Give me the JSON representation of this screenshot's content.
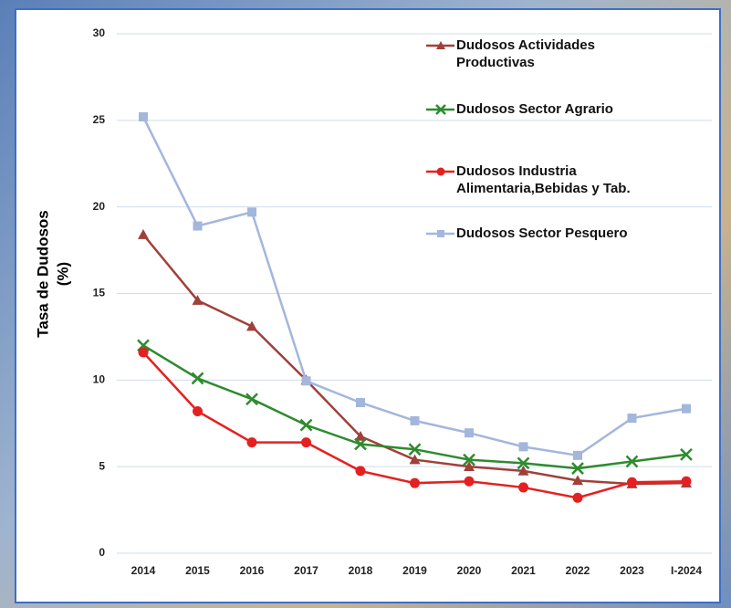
{
  "chart_data": {
    "type": "line",
    "y_label": [
      "Tasa de Dudosos",
      "(%)"
    ],
    "categories": [
      "2014",
      "2015",
      "2016",
      "2017",
      "2018",
      "2019",
      "2020",
      "2021",
      "2022",
      "2023",
      "I-2024"
    ],
    "series": [
      {
        "name": "Dudosos Actividades Productivas",
        "color": "#a0403a",
        "marker": "triangle",
        "values": [
          18.4,
          14.6,
          13.1,
          10.0,
          6.75,
          5.4,
          5.0,
          4.75,
          4.2,
          4.0,
          4.05
        ]
      },
      {
        "name": "Dudosos Sector Agrario",
        "color": "#2e8b2e",
        "marker": "x",
        "values": [
          12.0,
          10.1,
          8.9,
          7.4,
          6.3,
          6.0,
          5.4,
          5.2,
          4.9,
          5.3,
          5.7
        ]
      },
      {
        "name": "Dudosos Industria Alimentaria,Bebidas y Tab.",
        "color": "#e52020",
        "marker": "circle",
        "values": [
          11.6,
          8.2,
          6.4,
          6.4,
          4.75,
          4.05,
          4.15,
          3.8,
          3.2,
          4.1,
          4.15
        ]
      },
      {
        "name": "Dudosos Sector Pesquero",
        "color": "#a3b6dc",
        "marker": "square",
        "values": [
          25.2,
          18.9,
          19.7,
          9.95,
          8.7,
          7.65,
          6.95,
          6.15,
          5.65,
          7.8,
          8.35
        ]
      }
    ],
    "ylim": [
      0,
      30
    ],
    "yticks": [
      0,
      5,
      10,
      15,
      20,
      25,
      30
    ],
    "grid": true,
    "legend": "top-right"
  }
}
